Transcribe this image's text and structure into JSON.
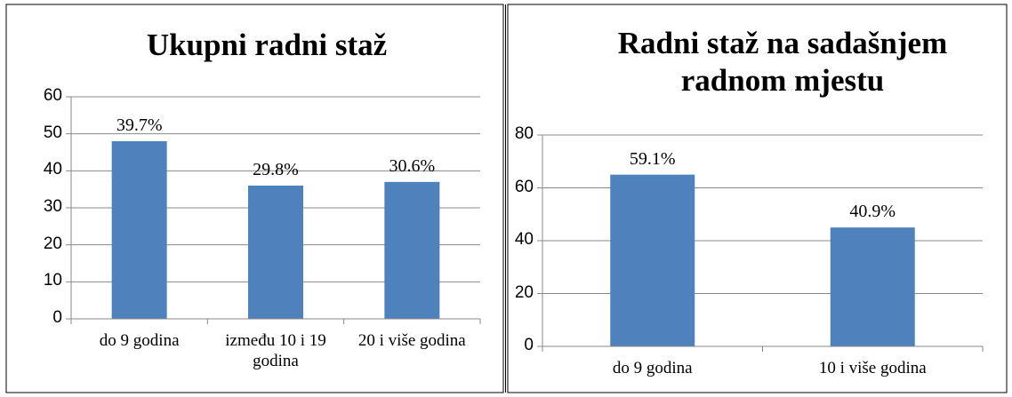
{
  "chart_data": [
    {
      "type": "bar",
      "title": "Ukupni radni staž",
      "categories": [
        "do 9 godina",
        "između 10 i 19 godina",
        "20 i više godina"
      ],
      "values": [
        48,
        36,
        37
      ],
      "data_labels": [
        "39.7%",
        "29.8%",
        "30.6%"
      ],
      "color": "#4f81bd",
      "ylim": [
        0,
        60
      ],
      "yticks": [
        0,
        10,
        20,
        30,
        40,
        50,
        60
      ],
      "grid": true
    },
    {
      "type": "bar",
      "title": "Radni staž na sadašnjem radnom mjestu",
      "categories": [
        "do 9 godina",
        "10 i više godina"
      ],
      "values": [
        65,
        45
      ],
      "data_labels": [
        "59.1%",
        "40.9%"
      ],
      "color": "#4f81bd",
      "ylim": [
        0,
        80
      ],
      "yticks": [
        0,
        20,
        40,
        60,
        80
      ],
      "grid": true
    }
  ]
}
